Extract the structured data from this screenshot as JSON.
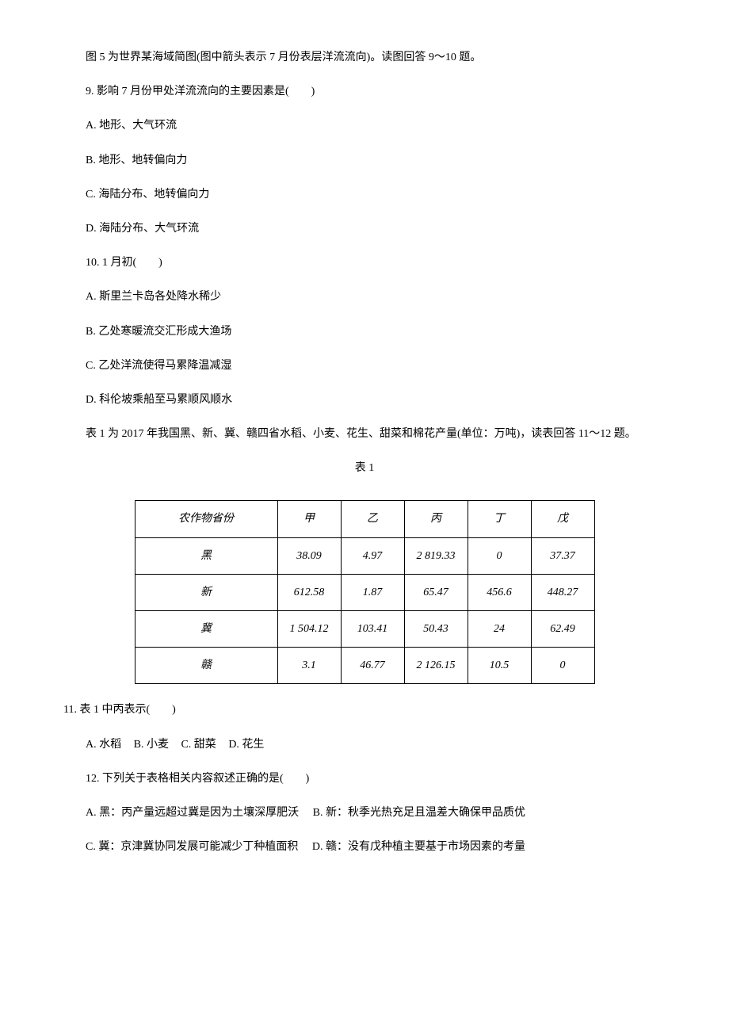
{
  "intro_figure5": "图 5 为世界某海域简图(图中箭头表示 7 月份表层洋流流向)。读图回答 9～10 题。",
  "q9": {
    "stem": "9. 影响 7 月份甲处洋流流向的主要因素是(　　)",
    "optA": "A. 地形、大气环流",
    "optB": "B. 地形、地转偏向力",
    "optC": "C. 海陆分布、地转偏向力",
    "optD": "D. 海陆分布、大气环流"
  },
  "q10": {
    "stem": "10. 1 月初(　　)",
    "optA": "A. 斯里兰卡岛各处降水稀少",
    "optB": "B. 乙处寒暖流交汇形成大渔场",
    "optC": "C. 乙处洋流使得马累降温减湿",
    "optD": "D. 科伦坡乘船至马累顺风顺水"
  },
  "intro_table1": "表 1 为 2017 年我国黑、新、冀、赣四省水稻、小麦、花生、甜菜和棉花产量(单位：万吨)，读表回答 11～12 题。",
  "table_title": "表 1",
  "table": {
    "header_label": "农作物省份",
    "columns": [
      "甲",
      "乙",
      "丙",
      "丁",
      "戊"
    ],
    "rows": [
      {
        "label": "黑",
        "cells": [
          "38.09",
          "4.97",
          "2 819.33",
          "0",
          "37.37"
        ]
      },
      {
        "label": "新",
        "cells": [
          "612.58",
          "1.87",
          "65.47",
          "456.6",
          "448.27"
        ]
      },
      {
        "label": "冀",
        "cells": [
          "1 504.12",
          "103.41",
          "50.43",
          "24",
          "62.49"
        ]
      },
      {
        "label": "赣",
        "cells": [
          "3.1",
          "46.77",
          "2 126.15",
          "10.5",
          "0"
        ]
      }
    ]
  },
  "q11": {
    "stem": "11. 表 1 中丙表示(　　)",
    "optA": "A. 水稻",
    "optB": "B. 小麦",
    "optC": "C. 甜菜",
    "optD": "D. 花生"
  },
  "q12": {
    "stem": "12. 下列关于表格相关内容叙述正确的是(　　)",
    "optA": "A. 黑：丙产量远超过冀是因为土壤深厚肥沃",
    "optB": "B. 新：秋季光热充足且温差大确保甲品质优",
    "optC": "C. 冀：京津冀协同发展可能减少丁种植面积",
    "optD": "D. 赣：没有戊种植主要基于市场因素的考量"
  }
}
